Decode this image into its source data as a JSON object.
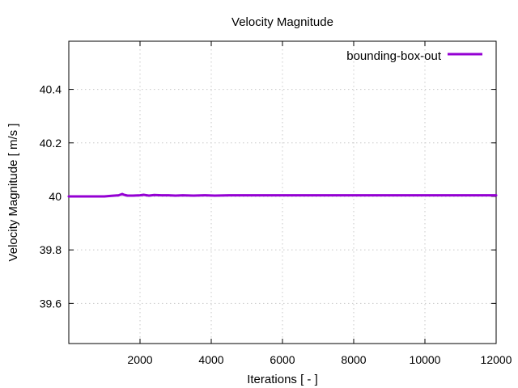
{
  "chart_data": {
    "type": "line",
    "title": "Velocity Magnitude",
    "xlabel": "Iterations [ - ]",
    "ylabel": "Velocity Magnitude [ m/s ]",
    "xlim": [
      0,
      12000
    ],
    "ylim": [
      39.45,
      40.58
    ],
    "xticks": [
      2000,
      4000,
      6000,
      8000,
      10000,
      12000
    ],
    "xtick_labels": [
      "2000",
      "4000",
      "6000",
      "8000",
      "10000",
      "12000"
    ],
    "yticks": [
      39.6,
      39.8,
      40.0,
      40.2,
      40.4
    ],
    "ytick_labels": [
      "39.6",
      "39.8",
      "40",
      "40.2",
      "40.4"
    ],
    "grid": true,
    "legend_position": "top-right",
    "series": [
      {
        "name": "bounding-box-out",
        "color": "#9400d3",
        "x": [
          0,
          500,
          1000,
          1200,
          1400,
          1500,
          1550,
          1650,
          1800,
          2000,
          2100,
          2250,
          2400,
          2600,
          2800,
          3000,
          3200,
          3500,
          3800,
          4100,
          4500,
          5000,
          6000,
          8000,
          10000,
          12000
        ],
        "y": [
          40.0,
          40.0,
          40.0,
          40.002,
          40.004,
          40.009,
          40.006,
          40.003,
          40.003,
          40.004,
          40.006,
          40.003,
          40.005,
          40.004,
          40.004,
          40.003,
          40.004,
          40.003,
          40.004,
          40.003,
          40.004,
          40.004,
          40.004,
          40.004,
          40.004,
          40.004
        ]
      }
    ]
  }
}
